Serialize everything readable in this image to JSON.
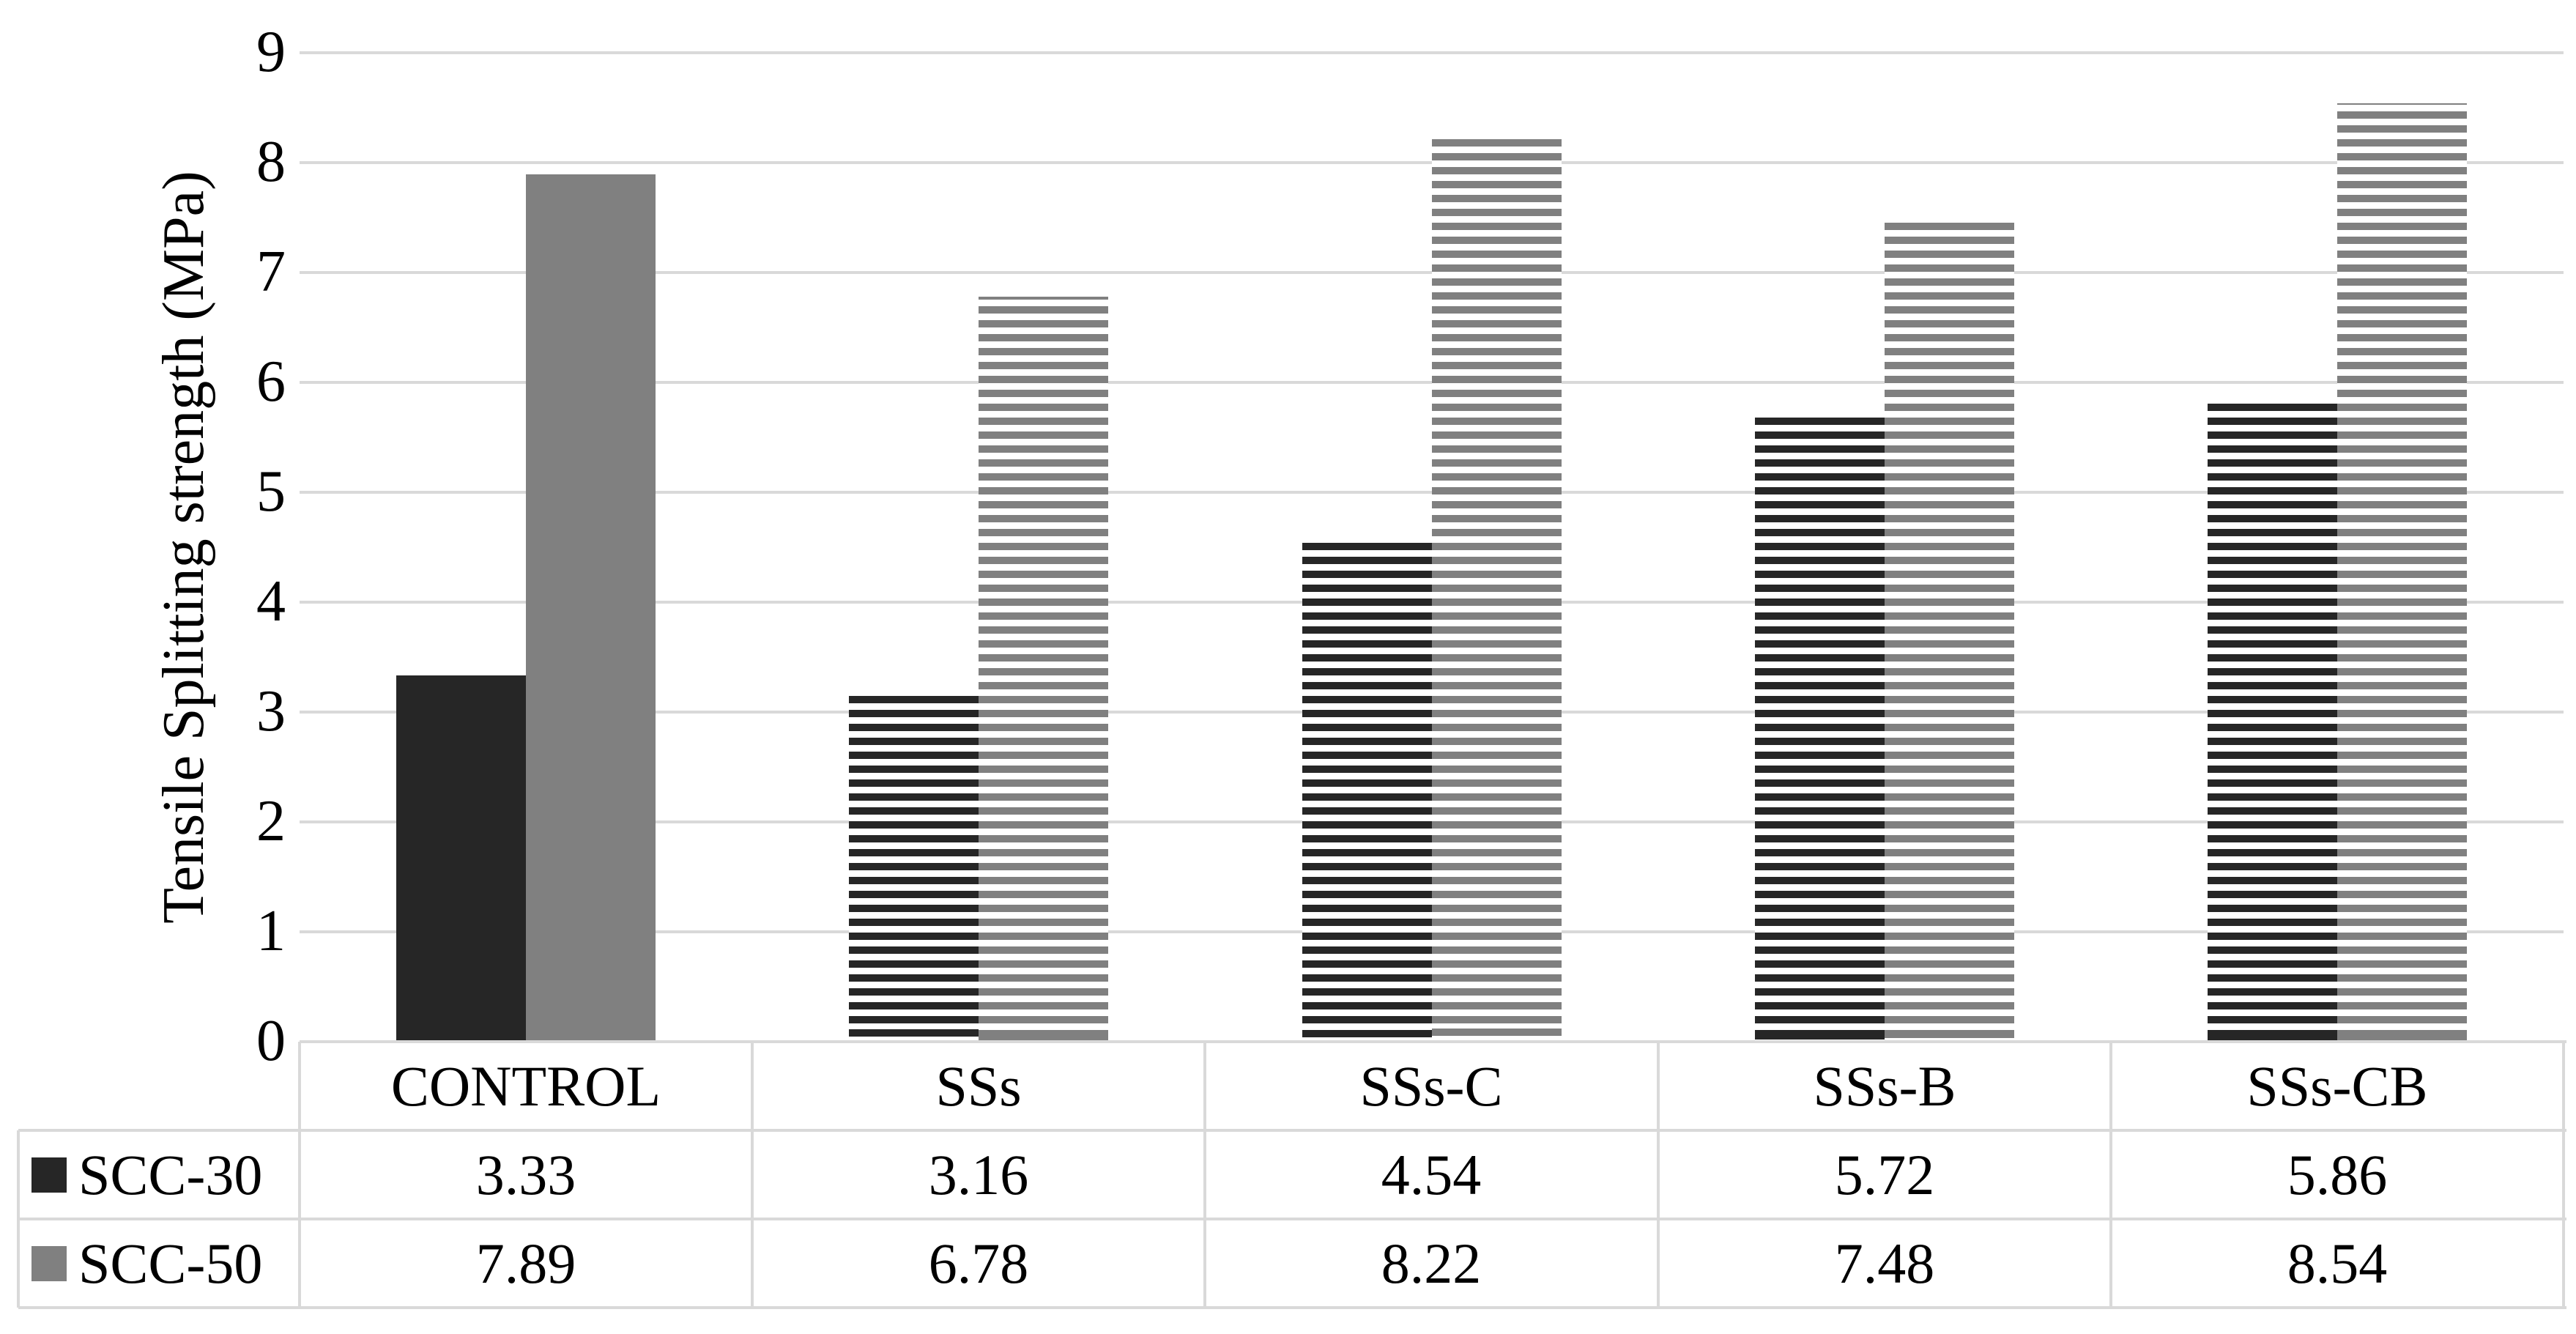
{
  "chart_data": {
    "type": "bar",
    "title": "",
    "ylabel": "Tensile Splitting strength (MPa)",
    "xlabel": "",
    "ylim": [
      0,
      9
    ],
    "ytick_step": 1,
    "yticks": [
      "0",
      "1",
      "2",
      "3",
      "4",
      "5",
      "6",
      "7",
      "8",
      "9"
    ],
    "grid": true,
    "legend_position": "table-left-column",
    "categories": [
      "CONTROL",
      "SSs",
      "SSs-C",
      "SSs-B",
      "SSs-CB"
    ],
    "series": [
      {
        "name": "SCC-30",
        "color": "#262626",
        "fill_control": "solid",
        "fill_others": "horizontal-stripes",
        "values": [
          3.33,
          3.16,
          4.54,
          5.72,
          5.86
        ]
      },
      {
        "name": "SCC-50",
        "color": "#808080",
        "fill_control": "solid",
        "fill_others": "horizontal-stripes",
        "values": [
          7.89,
          6.78,
          8.22,
          7.48,
          8.54
        ]
      }
    ],
    "data_table_shown": true
  },
  "colors": {
    "series_dark": "#262626",
    "series_gray": "#808080",
    "gridline": "#d9d9d9",
    "table_border": "#d9d9d9",
    "text": "#000000",
    "background": "#ffffff"
  }
}
